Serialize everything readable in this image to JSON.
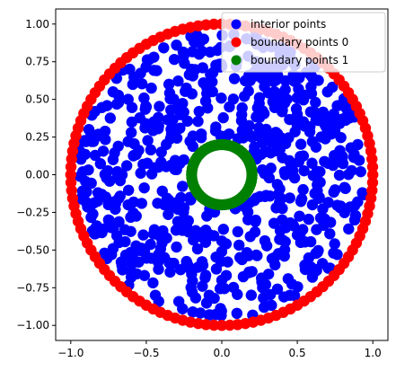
{
  "chart_data": {
    "type": "scatter",
    "title": "",
    "xlabel": "",
    "ylabel": "",
    "xlim": [
      -1.1,
      1.1
    ],
    "ylim": [
      -1.1,
      1.1
    ],
    "x_ticks": [
      -1.0,
      -0.5,
      0.0,
      0.5,
      1.0
    ],
    "x_tick_labels": [
      "−1.0",
      "−0.5",
      "0.0",
      "0.5",
      "1.0"
    ],
    "y_ticks": [
      1.0,
      0.75,
      0.5,
      0.25,
      0.0,
      -0.25,
      -0.5,
      -0.75,
      -1.0
    ],
    "y_tick_labels": [
      "1.00",
      "0.75",
      "0.50",
      "0.25",
      "0.00",
      "−0.25",
      "−0.50",
      "−0.75",
      "−1.00"
    ],
    "grid": false,
    "legend_position": "top-right",
    "aspect": "equal",
    "series": [
      {
        "name": "interior points",
        "color": "#0000ff",
        "description_region": "annulus 0.2 < r < 1.0",
        "points": [
          [
            -0.84,
            0.42
          ],
          [
            -0.72,
            0.55
          ],
          [
            -0.61,
            0.7
          ],
          [
            -0.45,
            0.78
          ],
          [
            -0.3,
            0.86
          ],
          [
            -0.12,
            0.9
          ],
          [
            0.08,
            0.93
          ],
          [
            0.25,
            0.88
          ],
          [
            0.42,
            0.8
          ],
          [
            0.58,
            0.68
          ],
          [
            0.7,
            0.55
          ],
          [
            0.82,
            0.38
          ],
          [
            0.9,
            0.2
          ],
          [
            0.92,
            0.02
          ],
          [
            0.9,
            -0.18
          ],
          [
            0.84,
            -0.36
          ],
          [
            0.74,
            -0.52
          ],
          [
            0.6,
            -0.68
          ],
          [
            0.45,
            -0.8
          ],
          [
            0.28,
            -0.88
          ],
          [
            0.1,
            -0.92
          ],
          [
            -0.08,
            -0.93
          ],
          [
            -0.26,
            -0.89
          ],
          [
            -0.44,
            -0.8
          ],
          [
            -0.6,
            -0.68
          ],
          [
            -0.73,
            -0.53
          ],
          [
            -0.84,
            -0.36
          ],
          [
            -0.9,
            -0.18
          ],
          [
            -0.92,
            0.02
          ],
          [
            -0.9,
            0.22
          ],
          [
            -0.5,
            0.45
          ],
          [
            -0.35,
            0.6
          ],
          [
            -0.2,
            0.7
          ],
          [
            0.0,
            0.72
          ],
          [
            0.18,
            0.66
          ],
          [
            0.35,
            0.55
          ],
          [
            0.5,
            0.4
          ],
          [
            0.6,
            0.22
          ],
          [
            0.65,
            0.02
          ],
          [
            0.6,
            -0.2
          ],
          [
            0.5,
            -0.4
          ],
          [
            0.35,
            -0.55
          ],
          [
            0.18,
            -0.65
          ],
          [
            0.0,
            -0.7
          ],
          [
            -0.2,
            -0.66
          ],
          [
            -0.38,
            -0.55
          ],
          [
            -0.52,
            -0.4
          ],
          [
            -0.62,
            -0.2
          ],
          [
            -0.66,
            0.0
          ],
          [
            -0.62,
            0.22
          ],
          [
            -0.3,
            0.3
          ],
          [
            -0.15,
            0.42
          ],
          [
            0.05,
            0.45
          ],
          [
            0.25,
            0.38
          ],
          [
            0.38,
            0.2
          ],
          [
            0.42,
            0.0
          ],
          [
            0.36,
            -0.22
          ],
          [
            0.22,
            -0.38
          ],
          [
            0.0,
            -0.44
          ],
          [
            -0.22,
            -0.38
          ],
          [
            -0.38,
            -0.2
          ],
          [
            -0.42,
            0.05
          ],
          [
            -0.72,
            0.1
          ],
          [
            0.75,
            -0.1
          ],
          [
            -0.1,
            0.58
          ],
          [
            0.12,
            -0.55
          ],
          [
            0.48,
            0.62
          ],
          [
            -0.55,
            -0.58
          ],
          [
            0.3,
            0.72
          ],
          [
            -0.4,
            0.15
          ],
          [
            0.7,
            0.3
          ],
          [
            -0.75,
            -0.3
          ],
          [
            0.2,
            0.25
          ],
          [
            -0.25,
            -0.22
          ],
          [
            0.55,
            -0.6
          ],
          [
            -0.62,
            0.5
          ],
          [
            0.8,
            0.12
          ],
          [
            -0.82,
            -0.12
          ],
          [
            0.05,
            0.85
          ],
          [
            -0.05,
            -0.82
          ],
          [
            0.4,
            -0.3
          ],
          [
            -0.42,
            0.38
          ],
          [
            0.27,
            -0.75
          ],
          [
            -0.15,
            0.8
          ],
          [
            0.62,
            0.48
          ],
          [
            -0.68,
            -0.45
          ],
          [
            0.15,
            0.52
          ],
          [
            -0.3,
            -0.48
          ],
          [
            0.88,
            -0.3
          ],
          [
            -0.88,
            0.3
          ]
        ]
      },
      {
        "name": "boundary points 0",
        "color": "#ff0000",
        "description_region": "circle r = 1.0",
        "radius": 1.0,
        "count": 120
      },
      {
        "name": "boundary points 1",
        "color": "#008000",
        "description_region": "circle r = 0.2",
        "radius": 0.2,
        "count": 60
      }
    ]
  }
}
